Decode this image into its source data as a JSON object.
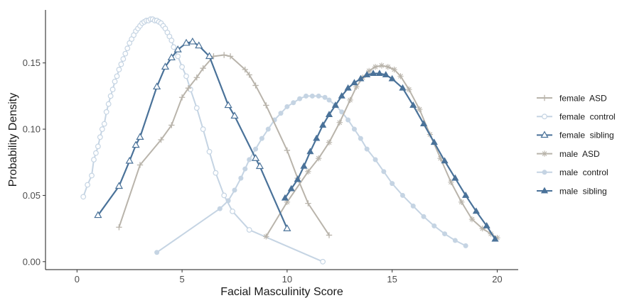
{
  "chart_data": {
    "type": "line",
    "title": "",
    "xlabel": "Facial Masculinity Score",
    "ylabel": "Probability Density",
    "xlim": [
      -1.5,
      21.0
    ],
    "ylim": [
      -0.006,
      0.19
    ],
    "xticks": [
      0,
      5,
      10,
      15,
      20
    ],
    "xtick_labels": [
      "0",
      "5",
      "10",
      "15",
      "20"
    ],
    "yticks": [
      0.0,
      0.05,
      0.1,
      0.15
    ],
    "ytick_labels": [
      "0.00",
      "0.05",
      "0.10",
      "0.15"
    ],
    "grid": false,
    "legend_position": "right",
    "series": [
      {
        "name": "female  ASD",
        "color": "#b9b4ab",
        "marker": "plus",
        "x": [
          2.0,
          3.0,
          4.0,
          4.5,
          5.0,
          5.3,
          5.7,
          6.0,
          6.5,
          7.0,
          7.3,
          8.0,
          8.2,
          8.5,
          9.0,
          10.0,
          10.5,
          11.0,
          12.0
        ],
        "y": [
          0.026,
          0.073,
          0.092,
          0.103,
          0.124,
          0.131,
          0.139,
          0.146,
          0.155,
          0.156,
          0.155,
          0.145,
          0.141,
          0.133,
          0.118,
          0.084,
          0.063,
          0.044,
          0.02
        ]
      },
      {
        "name": "female  control",
        "color": "#c5d4e3",
        "marker": "circle-open",
        "x": [
          0.3,
          0.5,
          0.7,
          0.8,
          0.9,
          1.0,
          1.1,
          1.2,
          1.3,
          1.4,
          1.5,
          1.6,
          1.7,
          1.8,
          1.9,
          2.0,
          2.1,
          2.2,
          2.3,
          2.4,
          2.5,
          2.6,
          2.7,
          2.8,
          2.9,
          3.0,
          3.1,
          3.2,
          3.3,
          3.4,
          3.5,
          3.6,
          3.7,
          3.8,
          3.9,
          4.0,
          4.1,
          4.2,
          4.3,
          4.4,
          4.5,
          4.6,
          4.8,
          5.0,
          5.2,
          5.4,
          5.7,
          6.0,
          6.3,
          6.6,
          7.0,
          7.4,
          8.2,
          11.7
        ],
        "y": [
          0.049,
          0.058,
          0.065,
          0.077,
          0.082,
          0.087,
          0.094,
          0.1,
          0.104,
          0.113,
          0.119,
          0.125,
          0.13,
          0.136,
          0.14,
          0.145,
          0.149,
          0.153,
          0.157,
          0.161,
          0.165,
          0.168,
          0.171,
          0.174,
          0.176,
          0.178,
          0.18,
          0.181,
          0.182,
          0.182,
          0.183,
          0.183,
          0.182,
          0.182,
          0.181,
          0.18,
          0.178,
          0.176,
          0.173,
          0.17,
          0.167,
          0.162,
          0.155,
          0.147,
          0.14,
          0.13,
          0.116,
          0.1,
          0.083,
          0.067,
          0.05,
          0.038,
          0.024,
          0.0
        ]
      },
      {
        "name": "female  sibling",
        "color": "#4a7299",
        "marker": "triangle-open",
        "x": [
          1.0,
          2.0,
          2.5,
          2.8,
          3.0,
          3.8,
          4.2,
          4.5,
          4.8,
          5.2,
          5.5,
          5.8,
          6.3,
          7.2,
          7.5,
          8.5,
          8.7,
          10.0
        ],
        "y": [
          0.035,
          0.057,
          0.076,
          0.088,
          0.094,
          0.132,
          0.147,
          0.154,
          0.16,
          0.165,
          0.166,
          0.163,
          0.155,
          0.118,
          0.11,
          0.078,
          0.072,
          0.025
        ]
      },
      {
        "name": "male  ASD",
        "color": "#b9b4ab",
        "marker": "asterisk",
        "x": [
          9.0,
          10.0,
          11.0,
          11.5,
          12.0,
          12.5,
          13.0,
          13.3,
          13.6,
          13.9,
          14.2,
          14.5,
          14.8,
          15.1,
          15.4,
          15.8,
          16.3,
          16.8,
          17.3,
          17.8,
          18.3,
          18.8,
          19.3,
          19.7,
          20.0
        ],
        "y": [
          0.019,
          0.045,
          0.068,
          0.078,
          0.09,
          0.105,
          0.122,
          0.132,
          0.139,
          0.144,
          0.147,
          0.148,
          0.147,
          0.145,
          0.14,
          0.13,
          0.115,
          0.096,
          0.078,
          0.06,
          0.045,
          0.032,
          0.025,
          0.021,
          0.018
        ]
      },
      {
        "name": "male  control",
        "color": "#c5d4e3",
        "marker": "circle-filled",
        "x": [
          3.8,
          6.8,
          7.2,
          7.5,
          7.8,
          8.0,
          8.2,
          8.5,
          8.8,
          9.1,
          9.4,
          9.7,
          10.0,
          10.3,
          10.6,
          10.9,
          11.2,
          11.5,
          11.8,
          12.0,
          12.3,
          12.6,
          12.9,
          13.2,
          13.5,
          13.8,
          14.2,
          14.6,
          15.0,
          15.5,
          16.0,
          16.5,
          17.0,
          17.5,
          18.0,
          18.5
        ],
        "y": [
          0.007,
          0.04,
          0.046,
          0.054,
          0.063,
          0.07,
          0.077,
          0.085,
          0.093,
          0.1,
          0.107,
          0.112,
          0.117,
          0.12,
          0.123,
          0.125,
          0.125,
          0.125,
          0.124,
          0.122,
          0.118,
          0.113,
          0.107,
          0.1,
          0.093,
          0.085,
          0.077,
          0.068,
          0.059,
          0.05,
          0.042,
          0.034,
          0.027,
          0.021,
          0.016,
          0.012
        ]
      },
      {
        "name": "male  sibling",
        "color": "#4a7299",
        "marker": "triangle-filled",
        "x": [
          9.9,
          10.2,
          10.5,
          10.8,
          11.1,
          11.4,
          11.7,
          12.0,
          12.3,
          12.6,
          12.9,
          13.2,
          13.5,
          13.8,
          14.1,
          14.4,
          14.7,
          15.0,
          15.5,
          16.0,
          16.5,
          17.0,
          17.5,
          18.0,
          18.5,
          19.0,
          19.5,
          19.9
        ],
        "y": [
          0.048,
          0.055,
          0.062,
          0.072,
          0.083,
          0.093,
          0.103,
          0.111,
          0.118,
          0.125,
          0.131,
          0.135,
          0.138,
          0.141,
          0.142,
          0.142,
          0.141,
          0.138,
          0.131,
          0.118,
          0.104,
          0.09,
          0.076,
          0.063,
          0.05,
          0.038,
          0.027,
          0.017
        ]
      }
    ]
  }
}
